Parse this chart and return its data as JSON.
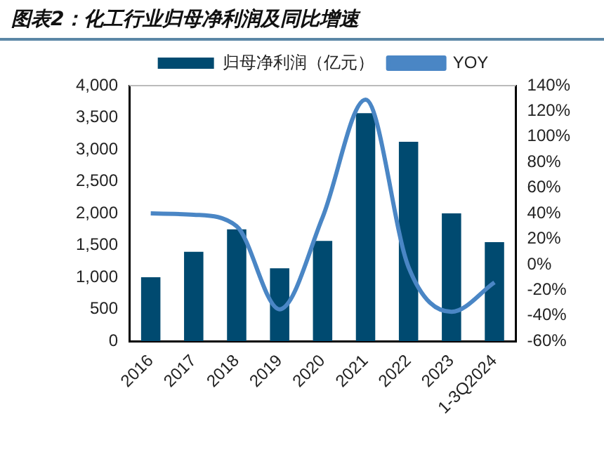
{
  "chart_data": {
    "type": "bar",
    "title": "图表2：化工行业归母净利润及同比增速",
    "categories": [
      "2016",
      "2017",
      "2018",
      "2019",
      "2020",
      "2021",
      "2022",
      "2023",
      "1-3Q2024"
    ],
    "series": [
      {
        "name": "归母净利润（亿元）",
        "color": "#004a70",
        "values": [
          1000,
          1400,
          1750,
          1140,
          1570,
          3570,
          3120,
          2000,
          1550
        ]
      },
      {
        "name": "YOY",
        "type": "line",
        "axis": "y2",
        "color": "#4a86c5",
        "values": [
          40,
          39,
          30,
          -35,
          37,
          129,
          -2,
          -37,
          -14
        ]
      }
    ],
    "ylim": [
      0,
      4000
    ],
    "yticks": [
      {
        "value": 0,
        "label": "0"
      },
      {
        "value": 500,
        "label": "500"
      },
      {
        "value": 1000,
        "label": "1,000"
      },
      {
        "value": 1500,
        "label": "1,500"
      },
      {
        "value": 2000,
        "label": "2,000"
      },
      {
        "value": 2500,
        "label": "2,500"
      },
      {
        "value": 3000,
        "label": "3,000"
      },
      {
        "value": 3500,
        "label": "3,500"
      },
      {
        "value": 4000,
        "label": "4,000"
      }
    ],
    "y2lim": [
      -60,
      140
    ],
    "y2ticks": [
      {
        "value": -60,
        "label": "-60%"
      },
      {
        "value": -40,
        "label": "-40%"
      },
      {
        "value": -20,
        "label": "-20%"
      },
      {
        "value": 0,
        "label": "0%"
      },
      {
        "value": 20,
        "label": "20%"
      },
      {
        "value": 40,
        "label": "40%"
      },
      {
        "value": 60,
        "label": "60%"
      },
      {
        "value": 80,
        "label": "80%"
      },
      {
        "value": 100,
        "label": "100%"
      },
      {
        "value": 120,
        "label": "120%"
      },
      {
        "value": 140,
        "label": "140%"
      }
    ],
    "legend": "top",
    "marker": "none"
  }
}
